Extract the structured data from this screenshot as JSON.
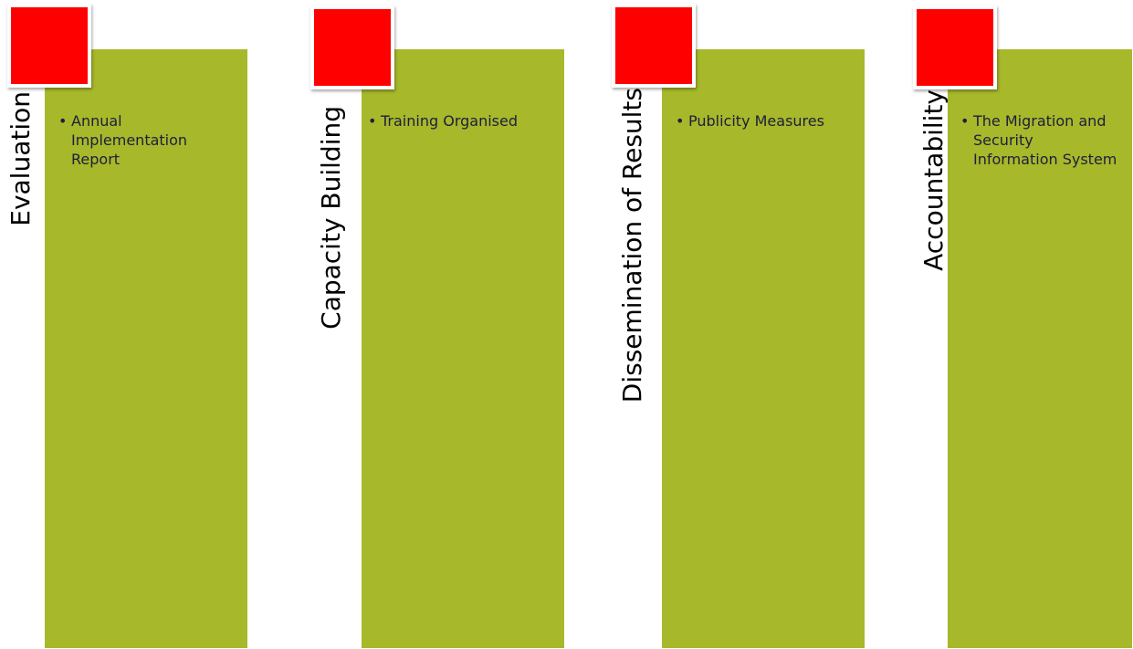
{
  "colors": {
    "panel": "#a7b82b",
    "square": "#ff0000",
    "label": "#000000",
    "bullet_text": "#1e1e3c"
  },
  "columns": [
    {
      "title": "Evaluation",
      "bullet": "Annual Implementation Report"
    },
    {
      "title": "Capacity Building",
      "bullet": "Training Organised"
    },
    {
      "title": "Dissemination of Results",
      "bullet": "Publicity Measures"
    },
    {
      "title": "Accountability",
      "bullet": "The Migration and Security Information System"
    }
  ],
  "bullet_marker": "•"
}
